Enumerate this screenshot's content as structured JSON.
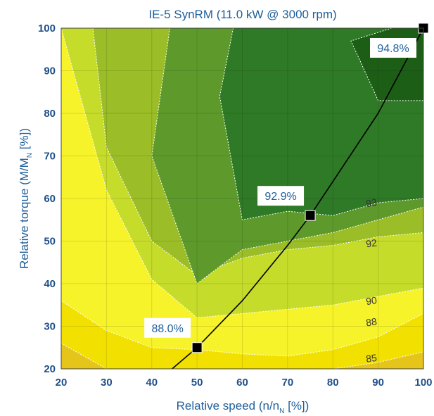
{
  "chart_data": {
    "type": "contour",
    "title": "IE-5 SynRM (11.0 kW @ 3000 rpm)",
    "xlabel": {
      "main": "Relative speed (n/n",
      "sub": "N",
      "tail": " [%])"
    },
    "ylabel": {
      "main": "Relative torque (M/M",
      "sub": "N",
      "tail": " [%])"
    },
    "xlim": [
      20,
      100
    ],
    "ylim": [
      20,
      100
    ],
    "xticks": [
      20,
      30,
      40,
      50,
      60,
      70,
      80,
      90,
      100
    ],
    "yticks": [
      20,
      30,
      40,
      50,
      60,
      70,
      80,
      90,
      100
    ],
    "grid": true,
    "levels": [
      {
        "value": 85,
        "color": "#f2e100",
        "label": "85",
        "x": [
          20,
          30,
          40,
          50,
          60,
          70,
          80,
          90,
          100
        ],
        "y": [
          26,
          20,
          20,
          20,
          20,
          20,
          20,
          21.5,
          24
        ]
      },
      {
        "value": 88,
        "color": "#f7f32a",
        "label": "88",
        "x": [
          20,
          30,
          40,
          50,
          60,
          70,
          80,
          90,
          100
        ],
        "y": [
          36,
          29,
          25,
          24.5,
          23.5,
          23,
          24.5,
          27.5,
          33
        ]
      },
      {
        "value": 90,
        "color": "#c6dc2a",
        "label": "90",
        "y_bottom": [
          20,
          20,
          33,
          36,
          37,
          37.5,
          37.5,
          38,
          38.5
        ],
        "x": [
          20,
          30,
          40,
          50,
          60,
          70,
          80,
          90,
          100
        ],
        "y": [
          100,
          62,
          41,
          32,
          33,
          34,
          35,
          37,
          39
        ]
      },
      {
        "value": 92,
        "color": "#9bbd27",
        "label": "92",
        "x": [
          27,
          30,
          40,
          50,
          60,
          70,
          80,
          90,
          100
        ],
        "y": [
          100,
          72,
          50,
          42,
          46,
          48,
          49,
          51,
          52
        ]
      },
      {
        "value": 93,
        "color": "#5d9a2b",
        "label": "93",
        "x": [
          44,
          40,
          50,
          60,
          70,
          80,
          90,
          100
        ],
        "y": [
          100,
          70,
          40,
          48,
          50,
          52,
          55,
          58
        ]
      },
      {
        "value": 94,
        "color": "#2f7a26",
        "label": "",
        "x": [
          58,
          55,
          60,
          70,
          80,
          90,
          100
        ],
        "y": [
          100,
          84,
          55,
          57,
          56,
          59,
          60
        ]
      },
      {
        "value": 94.5,
        "color": "#1d5e17",
        "label": "",
        "x": [
          93,
          84,
          90,
          100
        ],
        "y": [
          100,
          97,
          83,
          83
        ]
      }
    ],
    "contour_labels": [
      {
        "text": "93",
        "x": 88.5,
        "y": 59
      },
      {
        "text": "92",
        "x": 88.5,
        "y": 49.5
      },
      {
        "text": "90",
        "x": 88.5,
        "y": 36
      },
      {
        "text": "88",
        "x": 88.5,
        "y": 31
      },
      {
        "text": "85",
        "x": 88.5,
        "y": 22.5
      }
    ],
    "operating_curve": {
      "x": [
        44.5,
        50,
        60,
        70,
        75,
        80,
        90,
        100
      ],
      "y": [
        20,
        25,
        36,
        49,
        56,
        64,
        80,
        100
      ]
    },
    "operating_points": [
      {
        "x": 50,
        "y": 25,
        "label": "88.0%"
      },
      {
        "x": 75,
        "y": 56,
        "label": "92.9%"
      },
      {
        "x": 100,
        "y": 100,
        "label": "94.8%"
      }
    ]
  }
}
